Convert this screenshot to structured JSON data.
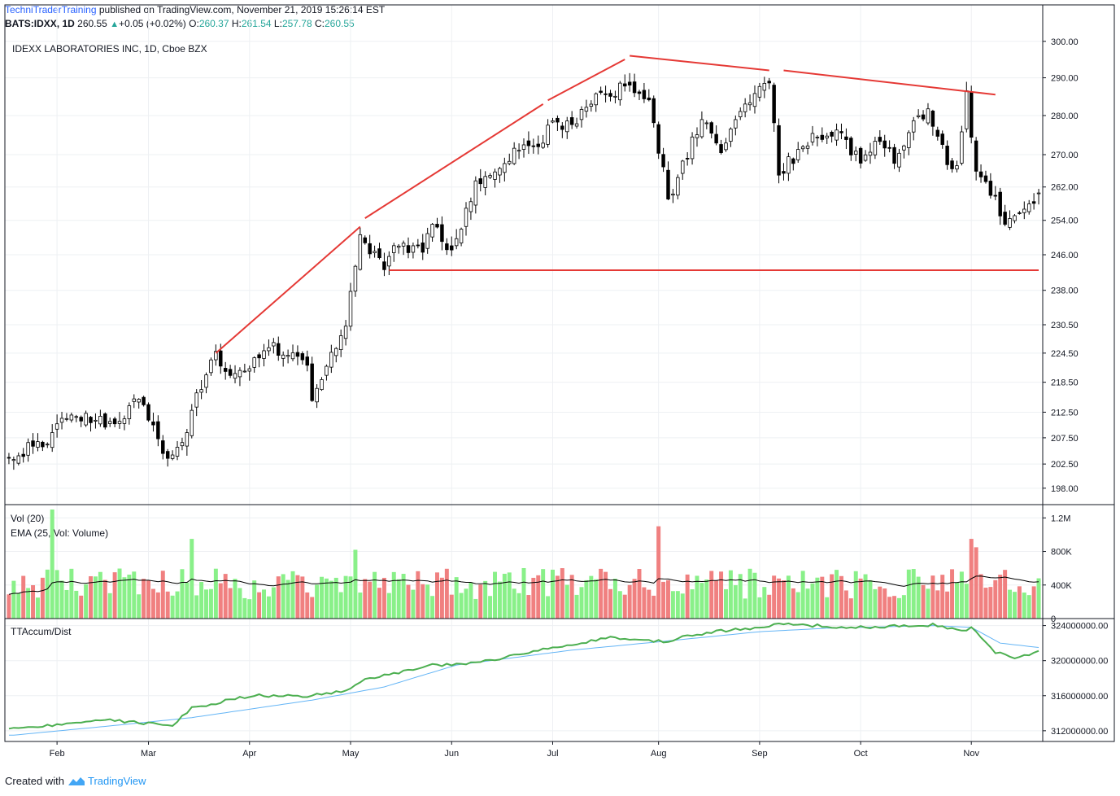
{
  "header": {
    "author": "TechniTraderTraining",
    "published_text": "published on TradingView.com, November 21, 2019 15:26:14 EST",
    "symbol": "BATS:IDXX, 1D",
    "last": "260.55",
    "change_symbol": "▲",
    "change": "+0.05 (+0.02%)",
    "o_label": "O:",
    "o": "260.37",
    "h_label": "H:",
    "h": "261.54",
    "l_label": "L:",
    "l": "257.78",
    "c_label": "C:",
    "c": "260.55"
  },
  "footer": {
    "created_with": "Created with",
    "brand": "TradingView"
  },
  "colors": {
    "up": "#000000",
    "down": "#000000",
    "trendline": "#e53935",
    "vol_up": "#89f089",
    "vol_down": "#f08080",
    "ema": "#000000",
    "accum": "#4caf50",
    "accum_ma": "#64b5f6",
    "grid": "#eef0f3"
  },
  "chart_data": [
    {
      "type": "candlestick",
      "title": "IDEXX LABORATORIES INC, 1D, Cboe BZX",
      "x_labels": [
        "Feb",
        "Mar",
        "Apr",
        "May",
        "Jun",
        "Jul",
        "Aug",
        "Sep",
        "Oct",
        "Nov"
      ],
      "y_ticks": [
        "300.00",
        "290.00",
        "280.00",
        "270.00",
        "262.00",
        "254.00",
        "246.00",
        "238.00",
        "230.50",
        "224.50",
        "218.50",
        "212.50",
        "207.50",
        "202.50",
        "198.00"
      ],
      "ylim": [
        195,
        302
      ],
      "scale": "log",
      "anchors": [
        [
          "Jan 21",
          204
        ],
        [
          "Jan 31",
          208
        ],
        [
          "Feb 4",
          212
        ],
        [
          "Feb 20",
          210
        ],
        [
          "Feb 27",
          215
        ],
        [
          "Mar 1",
          212
        ],
        [
          "Mar 7",
          203
        ],
        [
          "Mar 12",
          207
        ],
        [
          "Mar 18",
          218
        ],
        [
          "Mar 21",
          224
        ],
        [
          "Mar 26",
          219
        ],
        [
          "Apr 1",
          222
        ],
        [
          "Apr 5",
          226
        ],
        [
          "Apr 12",
          224
        ],
        [
          "Apr 17",
          222
        ],
        [
          "Apr 19",
          216
        ],
        [
          "Apr 26",
          226
        ],
        [
          "Apr 30",
          230
        ],
        [
          "May 3",
          250
        ],
        [
          "May 10",
          244
        ],
        [
          "May 15",
          248
        ],
        [
          "May 22",
          247
        ],
        [
          "May 24",
          254
        ],
        [
          "May 30",
          246
        ],
        [
          "Jun 3",
          250
        ],
        [
          "Jun 7",
          262
        ],
        [
          "Jun 14",
          268
        ],
        [
          "Jun 21",
          272
        ],
        [
          "Jun 26",
          271
        ],
        [
          "Jul 1",
          279
        ],
        [
          "Jul 8",
          277
        ],
        [
          "Jul 12",
          284
        ],
        [
          "Jul 19",
          286
        ],
        [
          "Jul 23",
          288
        ],
        [
          "Jul 30",
          283
        ],
        [
          "Aug 2",
          266
        ],
        [
          "Aug 5",
          259
        ],
        [
          "Aug 9",
          270
        ],
        [
          "Aug 14",
          280
        ],
        [
          "Aug 20",
          272
        ],
        [
          "Aug 27",
          282
        ],
        [
          "Aug 30",
          288
        ],
        [
          "Sep 4",
          289
        ],
        [
          "Sep 6",
          265
        ],
        [
          "Sep 10",
          268
        ],
        [
          "Sep 17",
          274
        ],
        [
          "Sep 24",
          276
        ],
        [
          "Oct 1",
          268
        ],
        [
          "Oct 7",
          274
        ],
        [
          "Oct 10",
          269
        ],
        [
          "Oct 15",
          276
        ],
        [
          "Oct 21",
          281
        ],
        [
          "Oct 25",
          268
        ],
        [
          "Oct 29",
          267
        ],
        [
          "Oct 31",
          285
        ],
        [
          "Nov 4",
          266
        ],
        [
          "Nov 8",
          259
        ],
        [
          "Nov 12",
          252
        ],
        [
          "Nov 21",
          260.55
        ]
      ],
      "last_bar": {
        "date": "Nov 21",
        "open": 260.37,
        "high": 261.54,
        "low": 257.78,
        "close": 260.55
      },
      "trendlines": [
        {
          "from": [
            "Mar 21",
            224.5
          ],
          "to": [
            "May 3",
            252.5
          ]
        },
        {
          "from": [
            "May 6",
            254.5
          ],
          "to": [
            "Jun 27",
            283
          ]
        },
        {
          "from": [
            "Jun 28",
            284
          ],
          "to": [
            "Jul 23",
            295
          ]
        },
        {
          "from": [
            "Jul 24",
            296
          ],
          "to": [
            "Sep 4",
            292
          ]
        },
        {
          "from": [
            "Sep 9",
            292
          ],
          "to": [
            "Nov 8",
            285.5
          ]
        },
        {
          "from": [
            "May 13",
            242.5
          ],
          "to": [
            "Nov 21",
            242.5
          ]
        }
      ]
    },
    {
      "type": "bar",
      "title": "Vol (20)",
      "series_label": "EMA (25, Vol: Volume)",
      "y_ticks": [
        "1.2M",
        "800K",
        "400K",
        "0"
      ],
      "ylim": [
        0,
        1300000
      ],
      "typical_volume": 420000,
      "spikes": [
        [
          "Jan 31",
          1300000
        ],
        [
          "Mar 14",
          950000
        ],
        [
          "May 2",
          820000
        ],
        [
          "Aug 1",
          1100000
        ],
        [
          "Nov 1",
          950000
        ],
        [
          "Nov 4",
          850000
        ]
      ]
    },
    {
      "type": "line",
      "title": "TTAccum/Dist",
      "y_ticks": [
        "324000000.00",
        "320000000.00",
        "316000000.00",
        "312000000.00"
      ],
      "ylim": [
        310500000,
        324800000
      ],
      "series": [
        {
          "values": [
            [
              "Jan 21",
              312200000
            ],
            [
              "Feb 15",
              313200000
            ],
            [
              "Mar 4",
              312800000
            ],
            [
              "Mar 8",
              312600000
            ],
            [
              "Mar 14",
              314600000
            ],
            [
              "Apr 1",
              316000000
            ],
            [
              "Apr 19",
              316000000
            ],
            [
              "Apr 30",
              316500000
            ],
            [
              "May 6",
              317800000
            ],
            [
              "May 24",
              319500000
            ],
            [
              "Jun 3",
              319600000
            ],
            [
              "Jun 14",
              320200000
            ],
            [
              "Jul 1",
              321500000
            ],
            [
              "Jul 18",
              322600000
            ],
            [
              "Aug 2",
              322200000
            ],
            [
              "Aug 15",
              323200000
            ],
            [
              "Aug 30",
              323800000
            ],
            [
              "Sep 6",
              324300000
            ],
            [
              "Sep 20",
              323900000
            ],
            [
              "Oct 4",
              323800000
            ],
            [
              "Oct 22",
              324100000
            ],
            [
              "Oct 29",
              323400000
            ],
            [
              "Nov 1",
              323700000
            ],
            [
              "Nov 8",
              321000000
            ],
            [
              "Nov 14",
              320400000
            ],
            [
              "Nov 21",
              321000000
            ]
          ]
        },
        {
          "values": [
            [
              "Jan 21",
              311500000
            ],
            [
              "Feb 15",
              312500000
            ],
            [
              "Mar 14",
              313500000
            ],
            [
              "Apr 19",
              315500000
            ],
            [
              "May 10",
              317000000
            ],
            [
              "Jun 3",
              319500000
            ],
            [
              "Jul 8",
              321200000
            ],
            [
              "Aug 2",
              322200000
            ],
            [
              "Aug 30",
              323300000
            ],
            [
              "Sep 20",
              323700000
            ],
            [
              "Oct 22",
              324000000
            ],
            [
              "Nov 1",
              323800000
            ],
            [
              "Nov 11",
              322000000
            ],
            [
              "Nov 21",
              321500000
            ]
          ]
        }
      ]
    }
  ]
}
